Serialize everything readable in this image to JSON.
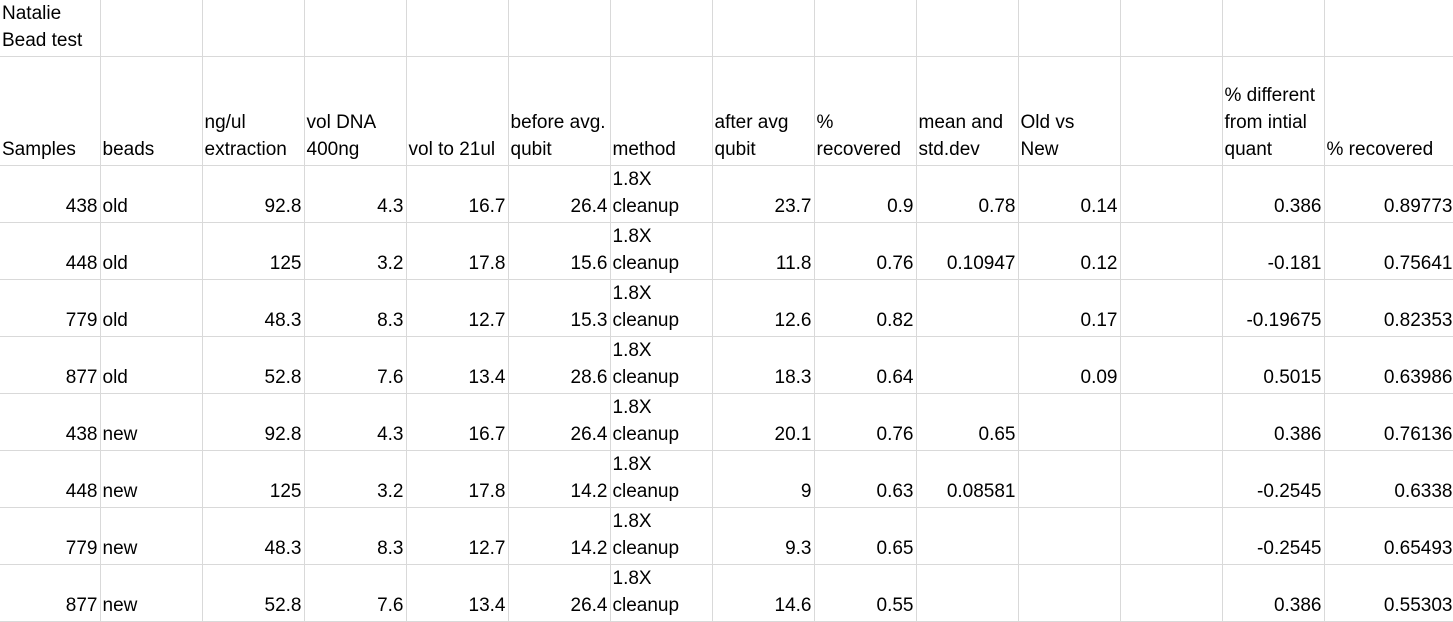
{
  "sheet": {
    "title": "Natalie Bead test",
    "headers": [
      "Samples",
      "beads",
      "ng/ul extraction",
      "vol DNA 400ng",
      "vol to 21ul",
      "before avg. qubit",
      "method",
      "after avg qubit",
      "% recovered",
      "mean and std.dev",
      "Old vs New",
      "",
      "% different from intial quant",
      "% recovered"
    ],
    "rows": [
      [
        "438",
        "old",
        "92.8",
        "4.3",
        "16.7",
        "26.4",
        "1.8X cleanup",
        "23.7",
        "0.9",
        "0.78",
        "0.14",
        "",
        "0.386",
        "0.89773"
      ],
      [
        "448",
        "old",
        "125",
        "3.2",
        "17.8",
        "15.6",
        "1.8X cleanup",
        "11.8",
        "0.76",
        "0.10947",
        "0.12",
        "",
        "-0.181",
        "0.75641"
      ],
      [
        "779",
        "old",
        "48.3",
        "8.3",
        "12.7",
        "15.3",
        "1.8X cleanup",
        "12.6",
        "0.82",
        "",
        "0.17",
        "",
        "-0.19675",
        "0.82353"
      ],
      [
        "877",
        "old",
        "52.8",
        "7.6",
        "13.4",
        "28.6",
        "1.8X cleanup",
        "18.3",
        "0.64",
        "",
        "0.09",
        "",
        "0.5015",
        "0.63986"
      ],
      [
        "438",
        "new",
        "92.8",
        "4.3",
        "16.7",
        "26.4",
        "1.8X cleanup",
        "20.1",
        "0.76",
        "0.65",
        "",
        "",
        "0.386",
        "0.76136"
      ],
      [
        "448",
        "new",
        "125",
        "3.2",
        "17.8",
        "14.2",
        "1.8X cleanup",
        "9",
        "0.63",
        "0.08581",
        "",
        "",
        "-0.2545",
        "0.6338"
      ],
      [
        "779",
        "new",
        "48.3",
        "8.3",
        "12.7",
        "14.2",
        "1.8X cleanup",
        "9.3",
        "0.65",
        "",
        "",
        "",
        "-0.2545",
        "0.65493"
      ],
      [
        "877",
        "new",
        "52.8",
        "7.6",
        "13.4",
        "26.4",
        "1.8X cleanup",
        "14.6",
        "0.55",
        "",
        "",
        "",
        "0.386",
        "0.55303"
      ]
    ]
  }
}
